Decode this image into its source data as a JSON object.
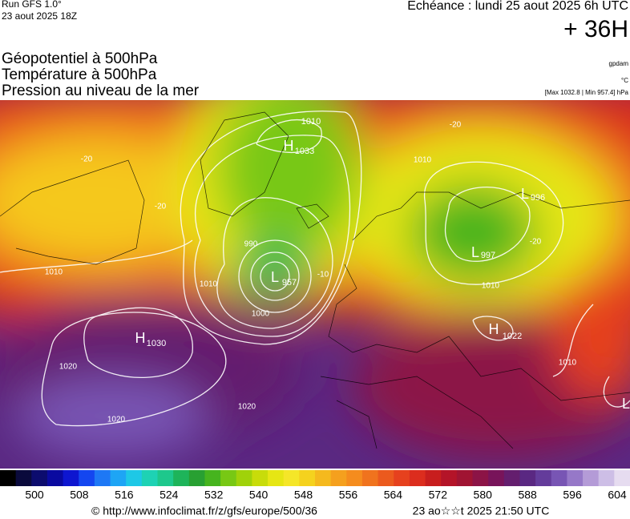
{
  "header": {
    "run": "Run GFS 1.0°",
    "run_date": "23 aout 2025 18Z",
    "echeance": "Echéance : lundi 25 aout 2025 6h UTC",
    "lead": "+ 36H"
  },
  "fields": [
    "Géopotentiel à 500hPa",
    "Température à 500hPa",
    "Pression au niveau de la mer"
  ],
  "units": [
    "gpdam",
    "°C",
    "[Max 1032.8 | Min 957.4] hPa"
  ],
  "map_labels": [
    "H",
    "1033",
    "1010",
    "L",
    "957",
    "990",
    "1000",
    "1010",
    "-10",
    "H",
    "1030",
    "1020",
    "1020",
    "1020",
    "L",
    "996",
    "L",
    "997",
    "1010",
    "1010",
    "H",
    "1022",
    "1010",
    "L",
    "-20",
    "-20",
    "-20",
    "-20",
    "1010"
  ],
  "colorbar": {
    "ticks": [
      500,
      508,
      516,
      524,
      532,
      540,
      548,
      556,
      564,
      572,
      580,
      588,
      596,
      604
    ],
    "colors": [
      "#000000",
      "#0a0a3c",
      "#0c0c6e",
      "#0a0aa0",
      "#0e16d0",
      "#1446f0",
      "#1e78f5",
      "#1ea5f5",
      "#1ec8e6",
      "#1ed2b4",
      "#1ec88c",
      "#1eb45a",
      "#28a032",
      "#46b41e",
      "#78c814",
      "#a0d20a",
      "#c8dc0a",
      "#e6e614",
      "#f5e628",
      "#f5d21e",
      "#f5b91e",
      "#f5a01e",
      "#f58c1e",
      "#f0731e",
      "#eb5a1e",
      "#e6411e",
      "#dc2d1e",
      "#c81e1e",
      "#b41428",
      "#a01432",
      "#8c1446",
      "#78145a",
      "#641e6e",
      "#5a2882",
      "#643c9b",
      "#7855b4",
      "#9678c8",
      "#b49bd7",
      "#cdbee6",
      "#e6dcf0"
    ]
  },
  "footer": {
    "source": "© http://www.infoclimat.fr/z/gfs/europe/500/36",
    "generated": "23 ao☆☆t 2025 21:50 UTC"
  }
}
